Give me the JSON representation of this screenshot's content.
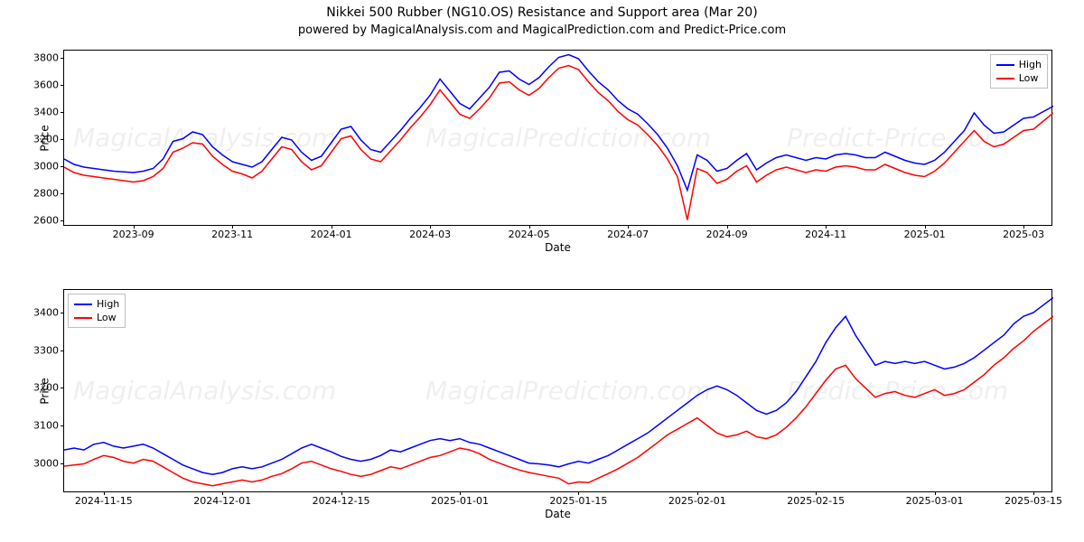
{
  "title": "Nikkei 500 Rubber (NG10.OS) Resistance and Support area (Mar 20)",
  "subtitle": "powered by MagicalAnalysis.com and MagicalPrediction.com and Predict-Price.com",
  "watermarks": [
    "MagicalAnalysis.com",
    "MagicalPrediction.com",
    "Predict-Price.com"
  ],
  "legend": {
    "high": "High",
    "low": "Low"
  },
  "colors": {
    "high": "#0000ff",
    "low": "#ff0000",
    "axis": "#000000",
    "legend_border": "#bfbfbf",
    "background": "#ffffff"
  },
  "line_width": 1.5,
  "font_family": "DejaVu Sans",
  "top_chart": {
    "type": "line",
    "ylabel": "Price",
    "xlabel": "Date",
    "legend_pos": "top-right",
    "ylim": [
      2550,
      3850
    ],
    "yticks": [
      2600,
      2800,
      3000,
      3200,
      3400,
      3600,
      3800
    ],
    "xticks": [
      "2023-09",
      "2023-11",
      "2024-01",
      "2024-03",
      "2024-05",
      "2024-07",
      "2024-09",
      "2024-11",
      "2025-01",
      "2025-03"
    ],
    "xmin": 0,
    "xmax": 100,
    "xtick_positions": [
      7,
      17,
      27,
      37,
      47,
      57,
      67,
      77,
      87,
      97
    ],
    "series_high": [
      3050,
      3010,
      2990,
      2980,
      2970,
      2960,
      2955,
      2950,
      2960,
      2980,
      3050,
      3180,
      3200,
      3250,
      3230,
      3140,
      3080,
      3030,
      3010,
      2990,
      3030,
      3120,
      3210,
      3190,
      3100,
      3040,
      3070,
      3170,
      3270,
      3290,
      3190,
      3120,
      3100,
      3180,
      3260,
      3350,
      3430,
      3520,
      3640,
      3550,
      3460,
      3420,
      3500,
      3580,
      3690,
      3700,
      3640,
      3600,
      3650,
      3730,
      3800,
      3820,
      3790,
      3700,
      3620,
      3560,
      3480,
      3420,
      3380,
      3310,
      3230,
      3130,
      3000,
      2820,
      3080,
      3040,
      2960,
      2980,
      3040,
      3090,
      2970,
      3020,
      3060,
      3080,
      3060,
      3040,
      3060,
      3050,
      3080,
      3090,
      3080,
      3060,
      3060,
      3100,
      3070,
      3040,
      3020,
      3010,
      3040,
      3100,
      3180,
      3260,
      3390,
      3300,
      3240,
      3250,
      3300,
      3350,
      3360,
      3400,
      3440
    ],
    "series_low": [
      2990,
      2950,
      2930,
      2920,
      2910,
      2900,
      2890,
      2880,
      2890,
      2920,
      2980,
      3100,
      3130,
      3170,
      3160,
      3070,
      3010,
      2960,
      2940,
      2910,
      2960,
      3050,
      3140,
      3120,
      3030,
      2970,
      3000,
      3100,
      3200,
      3220,
      3120,
      3050,
      3030,
      3110,
      3190,
      3280,
      3360,
      3450,
      3560,
      3470,
      3380,
      3350,
      3420,
      3500,
      3610,
      3620,
      3560,
      3520,
      3570,
      3650,
      3720,
      3740,
      3710,
      3620,
      3540,
      3480,
      3400,
      3340,
      3300,
      3230,
      3150,
      3050,
      2920,
      2600,
      2980,
      2950,
      2870,
      2900,
      2960,
      3000,
      2880,
      2930,
      2970,
      2990,
      2970,
      2950,
      2970,
      2960,
      2990,
      3000,
      2990,
      2970,
      2970,
      3010,
      2980,
      2950,
      2930,
      2920,
      2960,
      3020,
      3100,
      3180,
      3260,
      3180,
      3140,
      3160,
      3210,
      3260,
      3270,
      3330,
      3390
    ]
  },
  "bottom_chart": {
    "type": "line",
    "ylabel": "Price",
    "xlabel": "Date",
    "legend_pos": "top-left",
    "ylim": [
      2920,
      3460
    ],
    "yticks": [
      3000,
      3100,
      3200,
      3300,
      3400
    ],
    "xticks": [
      "2024-11-15",
      "2024-12-01",
      "2024-12-15",
      "2025-01-01",
      "2025-01-15",
      "2025-02-01",
      "2025-02-15",
      "2025-03-01",
      "2025-03-15"
    ],
    "xmin": 0,
    "xmax": 100,
    "xtick_positions": [
      4,
      16,
      28,
      40,
      52,
      64,
      76,
      88,
      98
    ],
    "series_high": [
      3035,
      3040,
      3035,
      3050,
      3055,
      3045,
      3040,
      3045,
      3050,
      3040,
      3025,
      3010,
      2995,
      2985,
      2975,
      2970,
      2975,
      2985,
      2990,
      2985,
      2990,
      3000,
      3010,
      3025,
      3040,
      3050,
      3040,
      3030,
      3018,
      3010,
      3005,
      3010,
      3020,
      3035,
      3030,
      3040,
      3050,
      3060,
      3065,
      3060,
      3065,
      3055,
      3050,
      3040,
      3030,
      3020,
      3010,
      3000,
      2998,
      2995,
      2990,
      2998,
      3005,
      3000,
      3010,
      3020,
      3035,
      3050,
      3065,
      3080,
      3100,
      3120,
      3140,
      3160,
      3180,
      3195,
      3205,
      3195,
      3180,
      3160,
      3140,
      3130,
      3140,
      3160,
      3190,
      3230,
      3270,
      3320,
      3360,
      3390,
      3340,
      3300,
      3260,
      3270,
      3265,
      3270,
      3265,
      3270,
      3260,
      3250,
      3255,
      3265,
      3280,
      3300,
      3320,
      3340,
      3370,
      3390,
      3400,
      3420,
      3440
    ],
    "series_low": [
      2992,
      2995,
      2998,
      3010,
      3020,
      3015,
      3005,
      3000,
      3010,
      3005,
      2990,
      2975,
      2960,
      2950,
      2945,
      2940,
      2945,
      2950,
      2955,
      2950,
      2955,
      2965,
      2972,
      2985,
      3000,
      3005,
      2995,
      2985,
      2978,
      2970,
      2965,
      2970,
      2980,
      2990,
      2985,
      2995,
      3005,
      3015,
      3020,
      3030,
      3040,
      3035,
      3025,
      3010,
      3000,
      2990,
      2982,
      2975,
      2970,
      2965,
      2960,
      2945,
      2950,
      2948,
      2960,
      2972,
      2985,
      3000,
      3015,
      3035,
      3055,
      3075,
      3090,
      3105,
      3120,
      3100,
      3080,
      3070,
      3075,
      3085,
      3070,
      3065,
      3075,
      3095,
      3120,
      3150,
      3185,
      3220,
      3250,
      3260,
      3225,
      3200,
      3175,
      3185,
      3190,
      3180,
      3175,
      3185,
      3195,
      3180,
      3185,
      3195,
      3215,
      3235,
      3260,
      3280,
      3305,
      3325,
      3350,
      3370,
      3390
    ]
  }
}
